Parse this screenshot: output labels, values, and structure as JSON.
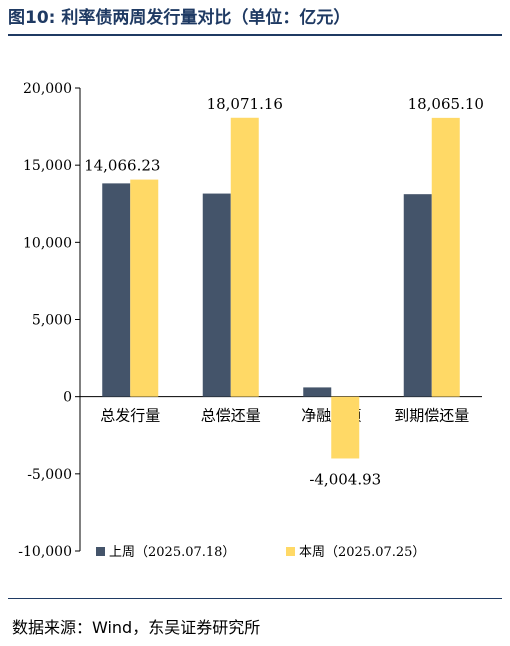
{
  "header": {
    "title": "图10:  利率债两周发行量对比（单位：亿元）"
  },
  "footer": {
    "source": "数据来源：Wind，东吴证券研究所"
  },
  "chart_data": {
    "type": "bar",
    "title": "",
    "xlabel": "",
    "ylabel": "",
    "ylim": [
      -10000,
      20000
    ],
    "yticks": [
      20000,
      15000,
      10000,
      5000,
      0,
      -5000,
      -10000
    ],
    "ytick_labels": [
      "20,000",
      "15,000",
      "10,000",
      "5,000",
      "0",
      "-5,000",
      "-10,000"
    ],
    "categories": [
      "总发行量",
      "总偿还量",
      "净融资额",
      "到期偿还量"
    ],
    "series": [
      {
        "name": "上周（2025.07.18）",
        "color": "#44546a",
        "values": [
          13820,
          13160,
          600,
          13120
        ]
      },
      {
        "name": "本周（2025.07.25）",
        "color": "#ffd966",
        "values": [
          14066.23,
          18071.16,
          -4004.93,
          18065.1
        ]
      }
    ],
    "data_labels": [
      {
        "category": "总发行量",
        "series": 1,
        "text": "14,066.23"
      },
      {
        "category": "总偿还量",
        "series": 1,
        "text": "18,071.16"
      },
      {
        "category": "净融资额",
        "series": 1,
        "text": "-4,004.93"
      },
      {
        "category": "到期偿还量",
        "series": 1,
        "text": "18,065.10"
      }
    ],
    "grid": false,
    "legend_position": "bottom"
  }
}
